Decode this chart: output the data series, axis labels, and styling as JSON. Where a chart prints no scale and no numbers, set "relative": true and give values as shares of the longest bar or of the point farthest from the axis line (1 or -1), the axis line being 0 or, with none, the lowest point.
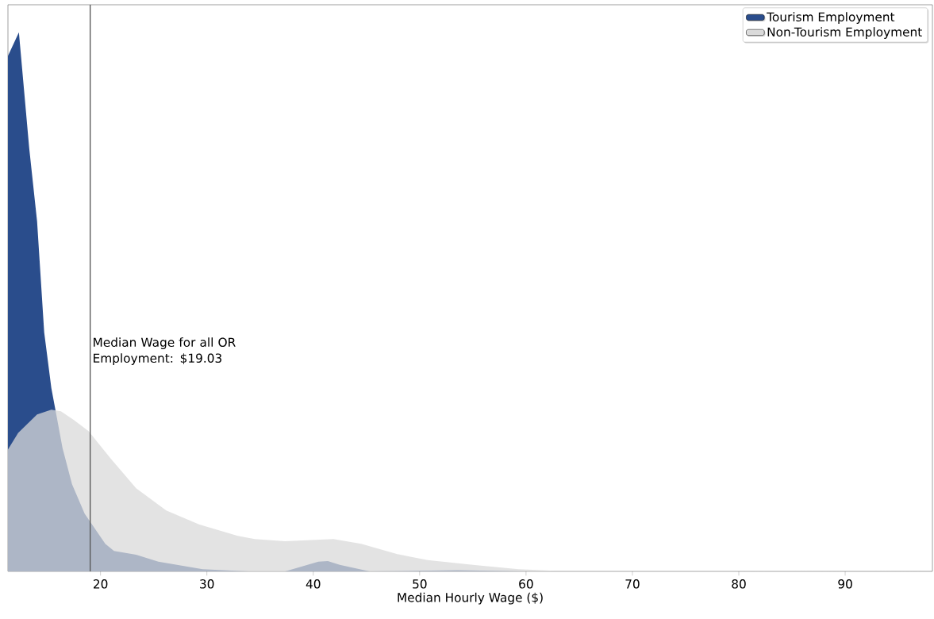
{
  "chart_data": {
    "type": "area",
    "xlabel": "Median Hourly Wage ($)",
    "relative": true,
    "xlim": [
      11.3,
      98.2
    ],
    "xticks": [
      20,
      30,
      40,
      50,
      60,
      70,
      80,
      90
    ],
    "legend": "top right",
    "grid": false,
    "series": [
      {
        "name": "Tourism Employment",
        "color": "#2a4d8c",
        "x": [
          11.3,
          12.33,
          13.3,
          14.04,
          14.71,
          15.38,
          15.9,
          16.43,
          17.32,
          18.51,
          20.45,
          21.27,
          23.35,
          25.44,
          29.6,
          33.9,
          37.35,
          40.48,
          41.37,
          42.49,
          45.3,
          53.6,
          60,
          98.2
        ],
        "values": [
          0.956,
          1,
          0.785,
          0.649,
          0.443,
          0.34,
          0.285,
          0.229,
          0.162,
          0.107,
          0.051,
          0.038,
          0.031,
          0.018,
          0.004,
          0,
          0,
          0.018,
          0.019,
          0.012,
          0,
          0.002,
          0,
          0
        ]
      },
      {
        "name": "Non-Tourism Employment",
        "color": "#d9d9d9",
        "x": [
          11.3,
          12.26,
          14.04,
          15.38,
          16.28,
          17.47,
          18.88,
          20.97,
          23.35,
          26.18,
          29.3,
          32.9,
          34.5,
          37.35,
          41.9,
          44.5,
          47.9,
          50.75,
          55.0,
          59.3,
          62.7,
          80,
          98.2
        ],
        "values": [
          0.226,
          0.257,
          0.291,
          0.3,
          0.297,
          0.281,
          0.26,
          0.209,
          0.154,
          0.113,
          0.087,
          0.066,
          0.06,
          0.056,
          0.06,
          0.051,
          0.032,
          0.021,
          0.012,
          0.004,
          0.001,
          0.001,
          0
        ]
      }
    ],
    "ref_lines": [
      {
        "axis": "x",
        "value": 19.03,
        "label": "Median Wage for all OR Employment: $19.03",
        "color": "#555555"
      }
    ]
  }
}
